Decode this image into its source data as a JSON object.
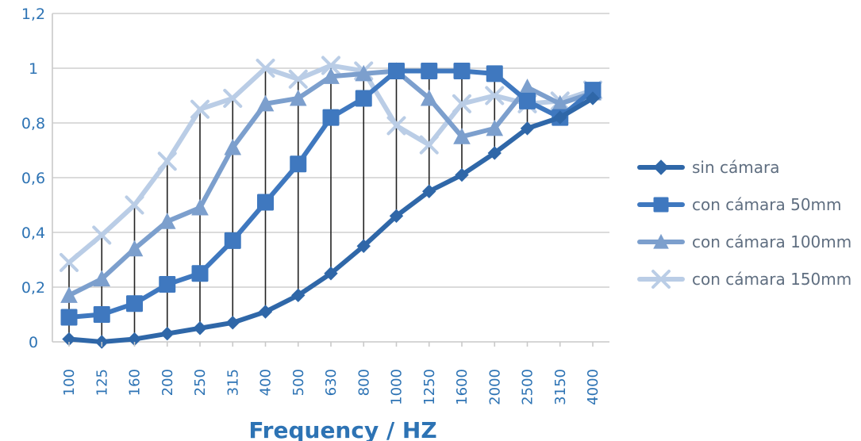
{
  "chart_data": {
    "type": "line",
    "title": "",
    "xlabel": "Frequency / HZ",
    "ylabel": "",
    "categories": [
      "100",
      "125",
      "160",
      "200",
      "250",
      "315",
      "400",
      "500",
      "630",
      "800",
      "1000",
      "1250",
      "1600",
      "2000",
      "2500",
      "3150",
      "4000"
    ],
    "ylim": [
      0,
      1.2
    ],
    "y_ticks": [
      "0",
      "0,2",
      "0,4",
      "0,6",
      "0,8",
      "1",
      "1,2"
    ],
    "grid": true,
    "legend_position": "right",
    "drop_lines": true,
    "series": [
      {
        "name": "sin cámara",
        "marker": "diamond",
        "color": "#2f67a8",
        "values": [
          0.01,
          0.0,
          0.01,
          0.03,
          0.05,
          0.07,
          0.11,
          0.17,
          0.25,
          0.35,
          0.46,
          0.55,
          0.61,
          0.69,
          0.78,
          0.82,
          0.89
        ]
      },
      {
        "name": "con cámara 50mm",
        "marker": "square",
        "color": "#3f78bf",
        "values": [
          0.09,
          0.1,
          0.14,
          0.21,
          0.25,
          0.37,
          0.51,
          0.65,
          0.82,
          0.89,
          0.99,
          0.99,
          0.99,
          0.98,
          0.88,
          0.82,
          0.92
        ]
      },
      {
        "name": "con cámara 100mm",
        "marker": "triangle",
        "color": "#7c9fcd",
        "values": [
          0.17,
          0.23,
          0.34,
          0.44,
          0.49,
          0.71,
          0.87,
          0.89,
          0.97,
          0.98,
          0.99,
          0.89,
          0.75,
          0.78,
          0.93,
          0.87,
          0.91
        ]
      },
      {
        "name": "con cámara 150mm",
        "marker": "x",
        "color": "#bacde6",
        "values": [
          0.29,
          0.39,
          0.5,
          0.66,
          0.85,
          0.89,
          1.0,
          0.96,
          1.01,
          0.99,
          0.79,
          0.72,
          0.87,
          0.9,
          0.87,
          0.88,
          0.92
        ]
      }
    ]
  }
}
